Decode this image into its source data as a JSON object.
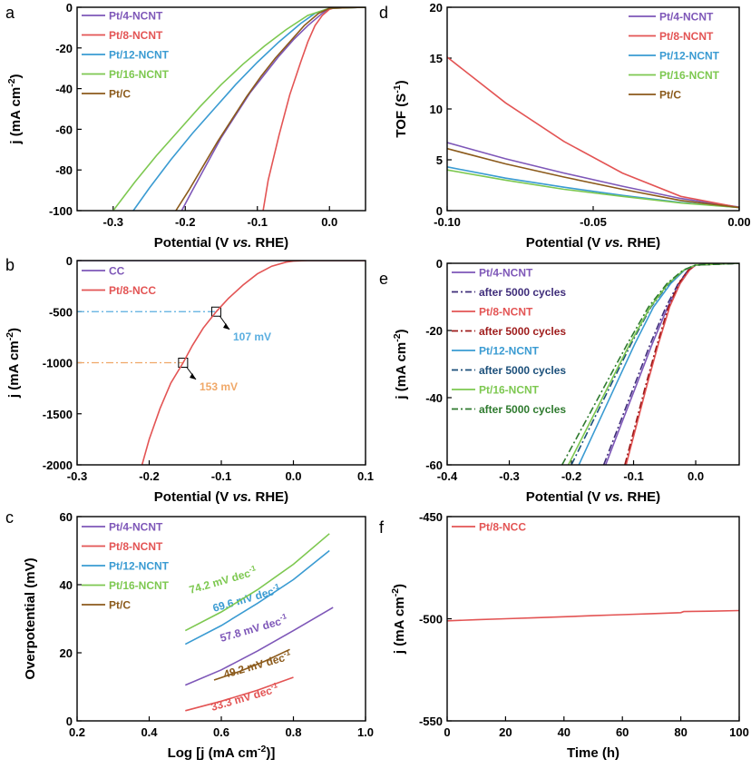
{
  "chart_data": [
    {
      "panel": "a",
      "type": "line",
      "xlabel": "Potential (V vs. RHE)",
      "ylabel": "j (mA cm-2)",
      "xlim": [
        -0.35,
        0.05
      ],
      "ylim": [
        -100,
        0
      ],
      "xticks": [
        -0.3,
        -0.2,
        -0.1,
        0.0
      ],
      "yticks": [
        0,
        -20,
        -40,
        -60,
        -80,
        -100
      ],
      "xtick_labels": [
        "-0.3",
        "-0.2",
        "-0.1",
        "0.0"
      ],
      "ytick_labels": [
        "0",
        "-20",
        "-40",
        "-60",
        "-80",
        "-100"
      ],
      "legend": "top-left",
      "series": [
        {
          "name": "Pt/4-NCNT",
          "color": "#7e57b8",
          "x": [
            -0.205,
            -0.19,
            -0.17,
            -0.15,
            -0.13,
            -0.11,
            -0.09,
            -0.07,
            -0.05,
            -0.03,
            -0.01,
            0.0,
            0.05
          ],
          "y": [
            -100,
            -90,
            -77,
            -64,
            -53,
            -42,
            -33,
            -24,
            -16,
            -9,
            -3,
            -0.5,
            0
          ]
        },
        {
          "name": "Pt/8-NCNT",
          "color": "#e35454",
          "x": [
            -0.092,
            -0.085,
            -0.07,
            -0.055,
            -0.04,
            -0.03,
            -0.02,
            -0.01,
            0.0,
            0.01,
            0.05
          ],
          "y": [
            -100,
            -85,
            -63,
            -43,
            -27,
            -17,
            -9,
            -4,
            -1,
            0,
            0
          ]
        },
        {
          "name": "Pt/12-NCNT",
          "color": "#3a9bd2",
          "x": [
            -0.272,
            -0.25,
            -0.22,
            -0.19,
            -0.16,
            -0.13,
            -0.1,
            -0.07,
            -0.04,
            -0.02,
            0.0,
            0.05
          ],
          "y": [
            -100,
            -89,
            -75,
            -62,
            -50,
            -38,
            -27,
            -17,
            -8,
            -3,
            -0.5,
            0
          ]
        },
        {
          "name": "Pt/16-NCNT",
          "color": "#7dc850",
          "x": [
            -0.3,
            -0.27,
            -0.24,
            -0.21,
            -0.18,
            -0.15,
            -0.12,
            -0.09,
            -0.06,
            -0.03,
            0.0,
            0.05
          ],
          "y": [
            -100,
            -86,
            -73,
            -61,
            -49,
            -38,
            -28,
            -19,
            -11,
            -4,
            -0.5,
            0
          ]
        },
        {
          "name": "Pt/C",
          "color": "#8b5a1b",
          "x": [
            -0.213,
            -0.195,
            -0.175,
            -0.155,
            -0.135,
            -0.115,
            -0.095,
            -0.075,
            -0.055,
            -0.035,
            -0.015,
            0.0,
            0.05
          ],
          "y": [
            -100,
            -90,
            -78,
            -66,
            -55,
            -44,
            -34,
            -25,
            -17,
            -9,
            -3,
            -0.5,
            0
          ]
        }
      ]
    },
    {
      "panel": "b",
      "type": "line",
      "xlabel": "Potential (V vs. RHE)",
      "ylabel": "j (mA cm-2)",
      "xlim": [
        -0.3,
        0.1
      ],
      "ylim": [
        -2000,
        0
      ],
      "xticks": [
        -0.3,
        -0.2,
        -0.1,
        0.0,
        0.1
      ],
      "yticks": [
        0,
        -500,
        -1000,
        -1500,
        -2000
      ],
      "xtick_labels": [
        "-0.3",
        "-0.2",
        "-0.1",
        "0.0",
        "0.1"
      ],
      "ytick_labels": [
        "0",
        "-500",
        "-1000",
        "-1500",
        "-2000"
      ],
      "legend": "top-left",
      "annotations": [
        {
          "label": "107 mV",
          "x": -0.107,
          "y": -500,
          "color": "#5aaee0"
        },
        {
          "label": "153 mV",
          "x": -0.153,
          "y": -1000,
          "color": "#f0a868"
        }
      ],
      "series": [
        {
          "name": "CC",
          "color": "#7e57b8",
          "x": [
            -0.3,
            0.1
          ],
          "y": [
            0,
            0
          ]
        },
        {
          "name": "Pt/8-NCC",
          "color": "#e35454",
          "x": [
            -0.21,
            -0.2,
            -0.185,
            -0.17,
            -0.153,
            -0.14,
            -0.125,
            -0.107,
            -0.09,
            -0.07,
            -0.05,
            -0.03,
            -0.01,
            0.0,
            0.02,
            0.1
          ],
          "y": [
            -2000,
            -1750,
            -1450,
            -1200,
            -1000,
            -830,
            -660,
            -500,
            -370,
            -240,
            -130,
            -55,
            -15,
            -5,
            0,
            0
          ]
        }
      ]
    },
    {
      "panel": "c",
      "type": "line",
      "xlabel": "Log [j (mA cm-2)]",
      "ylabel": "Overpotential (mV)",
      "xlim": [
        0.2,
        1.0
      ],
      "ylim": [
        0,
        60
      ],
      "xticks": [
        0.2,
        0.4,
        0.6,
        0.8,
        1.0
      ],
      "yticks": [
        0,
        20,
        40,
        60
      ],
      "xtick_labels": [
        "0.2",
        "0.4",
        "0.6",
        "0.8",
        "1.0"
      ],
      "ytick_labels": [
        "0",
        "20",
        "40",
        "60"
      ],
      "legend": "top-left",
      "series": [
        {
          "name": "Pt/4-NCNT",
          "color": "#7e57b8",
          "slope": "57.8 mV dec-1",
          "x": [
            0.5,
            0.6,
            0.7,
            0.8,
            0.91
          ],
          "y": [
            10.5,
            15,
            20.5,
            26.5,
            33.3
          ]
        },
        {
          "name": "Pt/8-NCNT",
          "color": "#e35454",
          "slope": "33.3 mV dec-1",
          "x": [
            0.5,
            0.6,
            0.7,
            0.8
          ],
          "y": [
            3,
            5.8,
            9,
            12.8
          ]
        },
        {
          "name": "Pt/12-NCNT",
          "color": "#3a9bd2",
          "slope": "69.6 mV dec-1",
          "x": [
            0.5,
            0.6,
            0.7,
            0.8,
            0.9
          ],
          "y": [
            22.5,
            28,
            34.5,
            41.5,
            50
          ]
        },
        {
          "name": "Pt/16-NCNT",
          "color": "#7dc850",
          "slope": "74.2 mV dec-1",
          "x": [
            0.5,
            0.6,
            0.7,
            0.8,
            0.9
          ],
          "y": [
            26.5,
            32,
            38.5,
            46,
            55
          ]
        },
        {
          "name": "Pt/C",
          "color": "#8b5a1b",
          "slope": "49.2 mV dec-1",
          "x": [
            0.58,
            0.65,
            0.72,
            0.79
          ],
          "y": [
            12,
            14.5,
            17.5,
            21
          ]
        }
      ]
    },
    {
      "panel": "d",
      "type": "line",
      "xlabel": "Potential (V vs. RHE)",
      "ylabel": "TOF (S-1)",
      "xlim": [
        -0.1,
        0.0
      ],
      "ylim": [
        0,
        20
      ],
      "xticks": [
        -0.1,
        -0.05,
        0.0
      ],
      "yticks": [
        0,
        5,
        10,
        15,
        20
      ],
      "xtick_labels": [
        "-0.10",
        "-0.05",
        "0.00"
      ],
      "ytick_labels": [
        "0",
        "5",
        "10",
        "15",
        "20"
      ],
      "legend": "top-right",
      "series": [
        {
          "name": "Pt/4-NCNT",
          "color": "#7e57b8",
          "x": [
            -0.1,
            -0.08,
            -0.06,
            -0.04,
            -0.02,
            0.0
          ],
          "y": [
            6.7,
            5.1,
            3.7,
            2.4,
            1.2,
            0.35
          ]
        },
        {
          "name": "Pt/8-NCNT",
          "color": "#e35454",
          "x": [
            -0.1,
            -0.08,
            -0.06,
            -0.04,
            -0.02,
            0.0
          ],
          "y": [
            15.1,
            10.6,
            6.8,
            3.7,
            1.4,
            0.3
          ]
        },
        {
          "name": "Pt/12-NCNT",
          "color": "#3a9bd2",
          "x": [
            -0.1,
            -0.08,
            -0.06,
            -0.04,
            -0.02,
            0.0
          ],
          "y": [
            4.3,
            3.2,
            2.3,
            1.5,
            0.8,
            0.3
          ]
        },
        {
          "name": "Pt/16-NCNT",
          "color": "#7dc850",
          "x": [
            -0.1,
            -0.08,
            -0.06,
            -0.04,
            -0.02,
            0.0
          ],
          "y": [
            4.0,
            3.0,
            2.1,
            1.4,
            0.75,
            0.3
          ]
        },
        {
          "name": "Pt/C",
          "color": "#8b5a1b",
          "x": [
            -0.1,
            -0.08,
            -0.06,
            -0.04,
            -0.02,
            0.0
          ],
          "y": [
            6.1,
            4.6,
            3.3,
            2.1,
            1.0,
            0.3
          ]
        }
      ]
    },
    {
      "panel": "e",
      "type": "line",
      "xlabel": "Potential (V vs. RHE)",
      "ylabel": "j (mA cm-2)",
      "xlim": [
        -0.4,
        0.07
      ],
      "ylim": [
        -60,
        0
      ],
      "xticks": [
        -0.4,
        -0.3,
        -0.2,
        -0.1,
        0.0
      ],
      "yticks": [
        0,
        -20,
        -40,
        -60
      ],
      "xtick_labels": [
        "-0.4",
        "-0.3",
        "-0.2",
        "-0.1",
        "0.0"
      ],
      "ytick_labels": [
        "0",
        "-20",
        "-40",
        "-60"
      ],
      "legend": "top-left",
      "series": [
        {
          "name": "Pt/4-NCNT",
          "color": "#7e57b8",
          "dash": false,
          "x": [
            -0.145,
            -0.12,
            -0.095,
            -0.07,
            -0.045,
            -0.025,
            -0.01,
            0.0,
            0.07
          ],
          "y": [
            -60,
            -48,
            -36,
            -24,
            -13,
            -6,
            -2,
            -0.5,
            0
          ]
        },
        {
          "name": "after 5000 cycles",
          "color": "#3f2d7a",
          "dash": true,
          "x": [
            -0.148,
            -0.123,
            -0.098,
            -0.073,
            -0.048,
            -0.028,
            -0.012,
            0.0,
            0.07
          ],
          "y": [
            -60,
            -48,
            -36,
            -24,
            -13,
            -6,
            -2,
            -0.5,
            0
          ]
        },
        {
          "name": "Pt/8-NCNT",
          "color": "#e35454",
          "dash": false,
          "x": [
            -0.112,
            -0.095,
            -0.078,
            -0.06,
            -0.042,
            -0.025,
            -0.01,
            0.0,
            0.07
          ],
          "y": [
            -60,
            -48,
            -36,
            -24,
            -13,
            -6,
            -2,
            -0.5,
            0
          ]
        },
        {
          "name": "after 5000 cycles",
          "color": "#9e1b1b",
          "dash": true,
          "x": [
            -0.114,
            -0.097,
            -0.08,
            -0.062,
            -0.044,
            -0.027,
            -0.012,
            0.0,
            0.07
          ],
          "y": [
            -60,
            -48,
            -36,
            -24,
            -13,
            -6,
            -2,
            -0.5,
            0
          ]
        },
        {
          "name": "Pt/12-NCNT",
          "color": "#3a9bd2",
          "dash": false,
          "x": [
            -0.188,
            -0.158,
            -0.128,
            -0.098,
            -0.068,
            -0.04,
            -0.018,
            0.0,
            0.07
          ],
          "y": [
            -60,
            -48,
            -36,
            -24,
            -13,
            -6,
            -2,
            -0.5,
            0
          ]
        },
        {
          "name": "after 5000 cycles",
          "color": "#1b4f7a",
          "dash": true,
          "x": [
            -0.2,
            -0.168,
            -0.136,
            -0.104,
            -0.072,
            -0.043,
            -0.019,
            0.0,
            0.07
          ],
          "y": [
            -60,
            -48,
            -36,
            -24,
            -13,
            -6,
            -2,
            -0.5,
            0
          ]
        },
        {
          "name": "Pt/16-NCNT",
          "color": "#7dc850",
          "dash": false,
          "x": [
            -0.205,
            -0.172,
            -0.139,
            -0.106,
            -0.073,
            -0.044,
            -0.019,
            0.0,
            0.07
          ],
          "y": [
            -60,
            -48,
            -36,
            -24,
            -13,
            -6,
            -2,
            -0.5,
            0
          ]
        },
        {
          "name": "after 5000 cycles",
          "color": "#2e7a2e",
          "dash": true,
          "x": [
            -0.215,
            -0.18,
            -0.145,
            -0.11,
            -0.076,
            -0.046,
            -0.02,
            0.0,
            0.07
          ],
          "y": [
            -60,
            -48,
            -36,
            -24,
            -13,
            -6,
            -2,
            -0.5,
            0
          ]
        }
      ]
    },
    {
      "panel": "f",
      "type": "line",
      "xlabel": "Time (h)",
      "ylabel": "j (mA cm-2)",
      "xlim": [
        0,
        100
      ],
      "ylim": [
        -550,
        -450
      ],
      "xticks": [
        0,
        20,
        40,
        60,
        80,
        100
      ],
      "yticks": [
        -450,
        -500,
        -550
      ],
      "xtick_labels": [
        "0",
        "20",
        "40",
        "60",
        "80",
        "100"
      ],
      "ytick_labels": [
        "-450",
        "-500",
        "-550"
      ],
      "legend": "top-left",
      "series": [
        {
          "name": "Pt/8-NCC",
          "color": "#e35454",
          "x": [
            0,
            10,
            20,
            30,
            40,
            50,
            60,
            70,
            80,
            81,
            90,
            100
          ],
          "y": [
            -501,
            -500.5,
            -500,
            -499.5,
            -499,
            -498.5,
            -498,
            -497.5,
            -497,
            -496.5,
            -496.3,
            -496
          ]
        }
      ]
    }
  ]
}
